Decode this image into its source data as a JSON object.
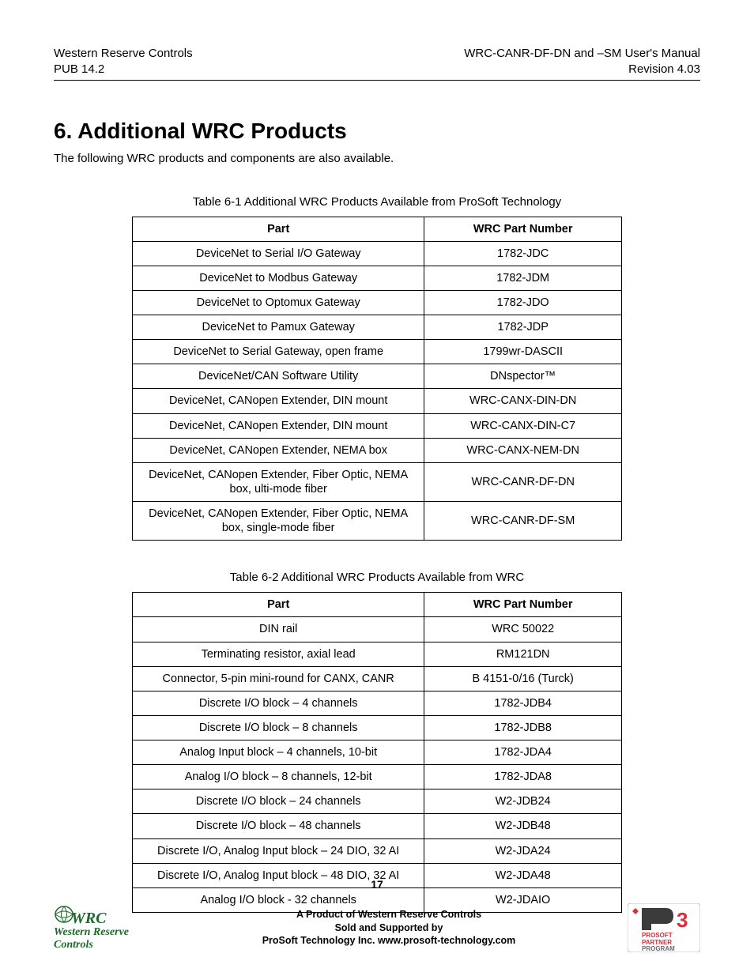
{
  "header": {
    "left_line1": "Western Reserve Controls",
    "left_line2": "PUB 14.2",
    "right_line1": "WRC-CANR-DF-DN and –SM User's Manual",
    "right_line2": "Revision 4.03"
  },
  "section": {
    "title": "6.    Additional WRC Products",
    "intro": "The following WRC products and components are also available."
  },
  "table1": {
    "caption": "Table 6-1 Additional WRC Products Available from ProSoft Technology",
    "columns": [
      "Part",
      "WRC Part Number"
    ],
    "rows": [
      [
        "DeviceNet to Serial I/O Gateway",
        "1782-JDC"
      ],
      [
        "DeviceNet to Modbus Gateway",
        "1782-JDM"
      ],
      [
        "DeviceNet to Optomux Gateway",
        "1782-JDO"
      ],
      [
        "DeviceNet to Pamux Gateway",
        "1782-JDP"
      ],
      [
        "DeviceNet to Serial Gateway, open frame",
        "1799wr-DASCII"
      ],
      [
        "DeviceNet/CAN Software Utility",
        "DNspector™"
      ],
      [
        "DeviceNet, CANopen Extender, DIN mount",
        "WRC-CANX-DIN-DN"
      ],
      [
        "DeviceNet, CANopen Extender, DIN mount",
        "WRC-CANX-DIN-C7"
      ],
      [
        "DeviceNet, CANopen Extender, NEMA box",
        "WRC-CANX-NEM-DN"
      ],
      [
        "DeviceNet, CANopen Extender, Fiber Optic, NEMA box, ulti-mode fiber",
        "WRC-CANR-DF-DN"
      ],
      [
        "DeviceNet, CANopen Extender, Fiber Optic, NEMA box, single-mode fiber",
        "WRC-CANR-DF-SM"
      ]
    ]
  },
  "table2": {
    "caption": "Table 6-2 Additional WRC Products Available from WRC",
    "columns": [
      "Part",
      "WRC Part Number"
    ],
    "rows": [
      [
        "DIN rail",
        "WRC 50022"
      ],
      [
        "Terminating resistor, axial lead",
        "RM121DN"
      ],
      [
        "Connector, 5-pin mini-round for CANX, CANR",
        "B 4151-0/16 (Turck)"
      ],
      [
        "Discrete I/O block – 4 channels",
        "1782-JDB4"
      ],
      [
        "Discrete I/O block – 8 channels",
        "1782-JDB8"
      ],
      [
        "Analog Input block – 4 channels, 10-bit",
        "1782-JDA4"
      ],
      [
        "Analog I/O block – 8 channels, 12-bit",
        "1782-JDA8"
      ],
      [
        "Discrete I/O block – 24 channels",
        "W2-JDB24"
      ],
      [
        "Discrete I/O block – 48 channels",
        "W2-JDB48"
      ],
      [
        "Discrete I/O, Analog Input block – 24 DIO, 32 AI",
        "W2-JDA24"
      ],
      [
        "Discrete I/O, Analog Input block – 48 DIO, 32 AI",
        "W2-JDA48"
      ],
      [
        "Analog I/O block - 32 channels",
        "W2-JDAIO"
      ]
    ]
  },
  "page_number": "17",
  "footer": {
    "line1": "A Product of Western Reserve Controls",
    "line2": "Sold and Supported by",
    "line3": "ProSoft Technology Inc. www.prosoft-technology.com",
    "wrc_logo_main": "WRC",
    "wrc_logo_sub": "Western Reserve Controls",
    "p3_text_1": "PROSOFT",
    "p3_text_2": "PARTNER",
    "p3_text_3": "PROGRAM"
  },
  "colors": {
    "text": "#000000",
    "wrc_green": "#1a6a2a",
    "p3_red": "#d4313a",
    "p3_gray": "#6b6b6b"
  }
}
